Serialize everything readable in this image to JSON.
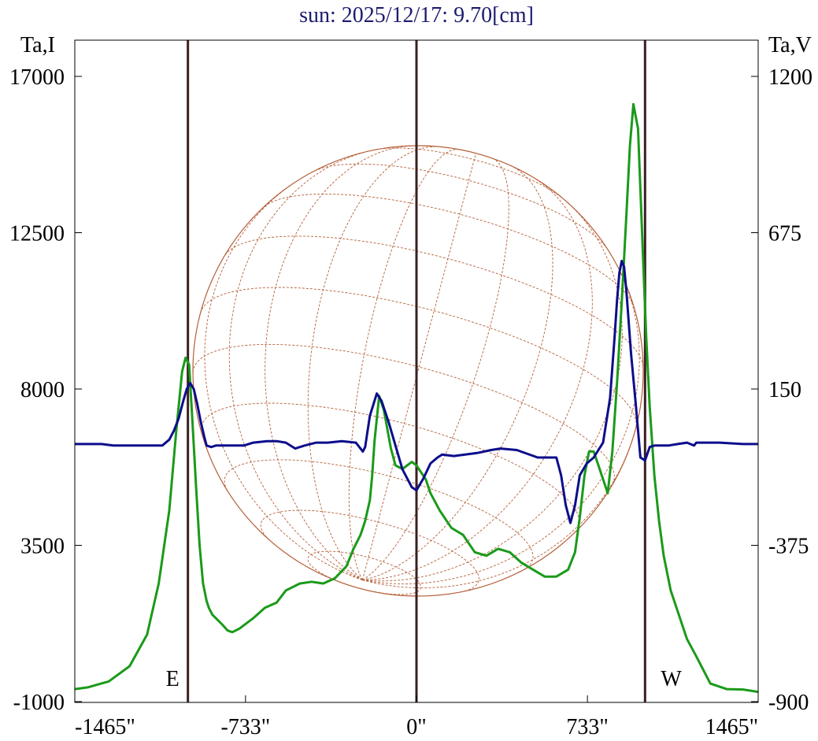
{
  "chart_data": {
    "type": "line",
    "title": "sun: 2025/12/17: 9.70[cm]",
    "left_axis_label": "Ta,I",
    "right_axis_label": "Ta,V",
    "ylim_left": [
      -1000,
      17000
    ],
    "ylim_right": [
      -900,
      1200
    ],
    "left_ticks": [
      "17000",
      "12500",
      "8000",
      "3500",
      "-1000"
    ],
    "left_tick_values": [
      17000,
      12500,
      8000,
      3500,
      -1000
    ],
    "right_ticks": [
      "1200",
      "675",
      "150",
      "-375",
      "-900"
    ],
    "right_tick_values": [
      1200,
      675,
      150,
      -375,
      -900
    ],
    "xlim": [
      -1465,
      1465
    ],
    "x_ticks": [
      "-1465\"",
      "-733\"",
      "0\"",
      "733\"",
      "1465\""
    ],
    "x_tick_values": [
      -1465,
      -733,
      0,
      733,
      1465
    ],
    "limb_markers": [
      {
        "x": -980,
        "label": "E"
      },
      {
        "x": 0,
        "label": ""
      },
      {
        "x": 980,
        "label": "W"
      }
    ],
    "colors": {
      "I": "#1a9a1a",
      "V": "#0d0d8c",
      "markers": "#3a2020",
      "disk": "#b5603a",
      "title": "#1c1c6e",
      "frame": "#000000"
    },
    "series": [
      {
        "name": "I",
        "axis": "left",
        "color": "#1a9a1a",
        "x": [
          -1465,
          -1410,
          -1320,
          -1230,
          -1155,
          -1105,
          -1060,
          -1030,
          -1005,
          -990,
          -975,
          -960,
          -945,
          -930,
          -915,
          -900,
          -890,
          -875,
          -860,
          -845,
          -830,
          -810,
          -790,
          -760,
          -730,
          -700,
          -650,
          -600,
          -560,
          -500,
          -450,
          -400,
          -350,
          -300,
          -270,
          -240,
          -220,
          -200,
          -190,
          -180,
          -160,
          -140,
          -110,
          -90,
          -60,
          -40,
          -20,
          0,
          20,
          40,
          60,
          100,
          150,
          200,
          250,
          300,
          350,
          400,
          450,
          500,
          550,
          600,
          650,
          680,
          700,
          720,
          740,
          760,
          780,
          800,
          820,
          840,
          860,
          880,
          900,
          915,
          930,
          950,
          970,
          985,
          1000,
          1020,
          1040,
          1060,
          1090,
          1120,
          1160,
          1200,
          1260,
          1330,
          1400,
          1465
        ],
        "y": [
          -640,
          -590,
          -420,
          20,
          930,
          2400,
          4500,
          6800,
          8500,
          8900,
          8700,
          7000,
          5200,
          3500,
          2400,
          1900,
          1700,
          1500,
          1400,
          1300,
          1200,
          1050,
          1000,
          1100,
          1250,
          1400,
          1700,
          1850,
          2200,
          2400,
          2450,
          2400,
          2550,
          2900,
          3400,
          3800,
          4200,
          4800,
          5500,
          6500,
          7800,
          7400,
          6300,
          5800,
          5700,
          5800,
          5900,
          5800,
          5600,
          5400,
          5000,
          4500,
          4000,
          3800,
          3300,
          3200,
          3400,
          3300,
          3000,
          2800,
          2600,
          2600,
          2800,
          3300,
          4300,
          5500,
          6200,
          6200,
          5800,
          5400,
          5000,
          6200,
          8200,
          10500,
          13000,
          15000,
          16200,
          15500,
          12000,
          9500,
          7500,
          5500,
          4200,
          3200,
          2200,
          1600,
          800,
          300,
          -480,
          -640,
          -650,
          -720
        ]
      },
      {
        "name": "V",
        "axis": "right",
        "color": "#0d0d8c",
        "x": [
          -1465,
          -1350,
          -1300,
          -1200,
          -1090,
          -1060,
          -1040,
          -1020,
          -1000,
          -985,
          -970,
          -955,
          -940,
          -925,
          -910,
          -900,
          -880,
          -860,
          -800,
          -740,
          -700,
          -640,
          -600,
          -560,
          -520,
          -480,
          -430,
          -380,
          -320,
          -260,
          -230,
          -220,
          -200,
          -170,
          -150,
          -120,
          -90,
          -60,
          -20,
          0,
          30,
          60,
          90,
          110,
          160,
          260,
          320,
          360,
          430,
          520,
          540,
          600,
          620,
          640,
          660,
          680,
          700,
          730,
          760,
          800,
          830,
          850,
          860,
          870,
          880,
          890,
          900,
          920,
          940,
          960,
          980,
          1000,
          1020,
          1040,
          1080,
          1120,
          1160,
          1190,
          1200,
          1250,
          1300,
          1400,
          1465
        ],
        "y": [
          -35,
          -35,
          -40,
          -40,
          -40,
          -20,
          10,
          50,
          110,
          150,
          170,
          150,
          100,
          40,
          -10,
          -40,
          -45,
          -40,
          -40,
          -40,
          -30,
          -25,
          -25,
          -30,
          -50,
          -40,
          -30,
          -30,
          -25,
          -30,
          -60,
          -45,
          60,
          135,
          110,
          40,
          -40,
          -120,
          -180,
          -190,
          -150,
          -100,
          -80,
          -70,
          -75,
          -65,
          -55,
          -50,
          -55,
          -80,
          -80,
          -80,
          -140,
          -240,
          -300,
          -240,
          -140,
          -100,
          -80,
          -30,
          120,
          330,
          450,
          540,
          580,
          560,
          480,
          270,
          100,
          -80,
          -90,
          -45,
          -40,
          -40,
          -40,
          -35,
          -30,
          -40,
          -30,
          -30,
          -30,
          -35,
          -35
        ]
      }
    ]
  }
}
